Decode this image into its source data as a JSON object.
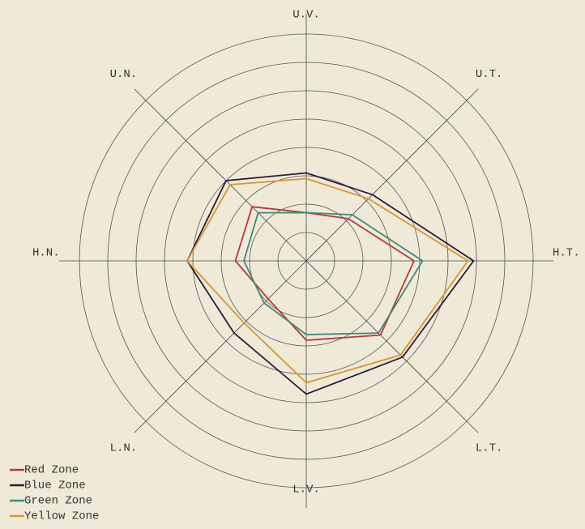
{
  "chart_data": {
    "type": "radar",
    "categories": [
      "U.V.",
      "U.T.",
      "H.T.",
      "L.T.",
      "L.V.",
      "L.N.",
      "H.N.",
      "U.N."
    ],
    "series": [
      {
        "name": "Red Zone",
        "color": "#b8383a",
        "values": [
          17,
          21,
          38,
          37,
          28,
          19,
          25,
          27
        ]
      },
      {
        "name": "Blue Zone",
        "color": "#2a1a3a",
        "values": [
          31,
          33,
          59,
          48,
          47,
          36,
          42,
          40
        ]
      },
      {
        "name": "Green Zone",
        "color": "#3f8a7a",
        "values": [
          17,
          23,
          41,
          36,
          26,
          21,
          22,
          24
        ]
      },
      {
        "name": "Yellow Zone",
        "color": "#d8962a",
        "values": [
          29,
          31,
          57,
          47,
          43,
          31,
          42,
          38
        ]
      }
    ],
    "rlim": [
      0,
      80
    ],
    "rticks": [
      10,
      20,
      30,
      40,
      50,
      60,
      70,
      80
    ],
    "grid": true,
    "legend": "lower left"
  }
}
